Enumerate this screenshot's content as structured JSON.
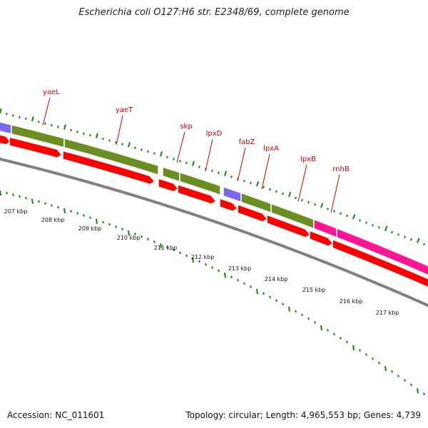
{
  "title": "Escherichia coli O127:H6 str. E2348/69, complete genome",
  "footer": {
    "accession": "Accession: NC_011601",
    "summary": "Topology: circular; Length: 4,965,553 bp; Genes: 4,739"
  },
  "colors": {
    "cds_green": "#6b8e23",
    "cds_purple": "#7b68ee",
    "cds_pink": "#ff1493",
    "feature_red": "#ff0000",
    "backbone_gray": "#808080",
    "tick_green": "#0a8a0a",
    "label_red": "#cc0000"
  },
  "gene_labels": [
    "yaeL",
    "yaeT",
    "skp",
    "lpxD",
    "fabZ",
    "lpxA",
    "lpxB",
    "rnhB"
  ],
  "kbp_labels": [
    "207 kbp",
    "208 kbp",
    "209 kbp",
    "210 kbp",
    "211 kbp",
    "212 kbp",
    "213 kbp",
    "214 kbp",
    "215 kbp",
    "216 kbp",
    "217 kbp"
  ]
}
